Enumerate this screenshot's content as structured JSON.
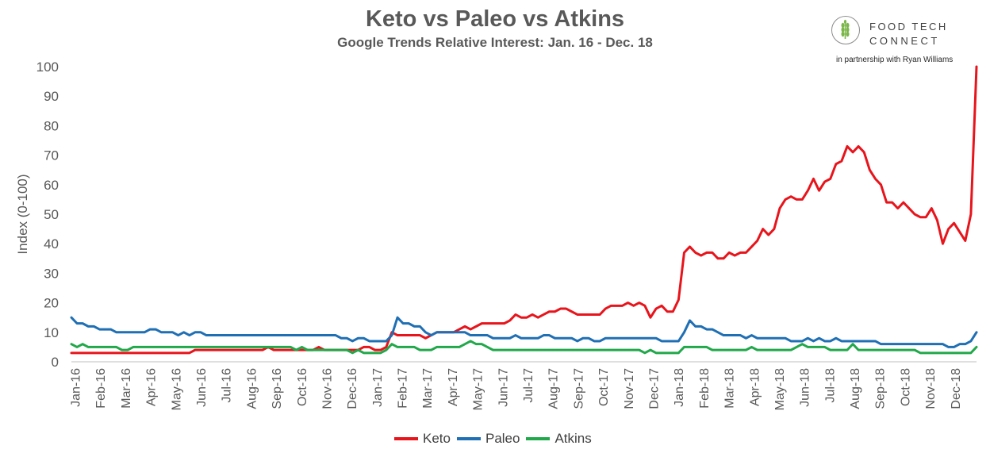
{
  "chart_data": {
    "type": "line",
    "title": "Keto vs Paleo vs Atkins",
    "subtitle": "Google Trends Relative Interest: Jan. 16 - Dec. 18",
    "ylabel": "Index (0-100)",
    "ylim": [
      0,
      100
    ],
    "yticks": [
      "0",
      "10",
      "20",
      "30",
      "40",
      "50",
      "60",
      "70",
      "80",
      "90",
      "100"
    ],
    "xticks": [
      "Jan-16",
      "Feb-16",
      "Mar-16",
      "Apr-16",
      "May-16",
      "Jun-16",
      "Jul-16",
      "Aug-16",
      "Sep-16",
      "Oct-16",
      "Nov-16",
      "Dec-16",
      "Jan-17",
      "Feb-17",
      "Mar-17",
      "Apr-17",
      "May-17",
      "Jun-17",
      "Jul-17",
      "Aug-17",
      "Sep-17",
      "Oct-17",
      "Nov-17",
      "Dec-17",
      "Jan-18",
      "Feb-18",
      "Mar-18",
      "Apr-18",
      "May-18",
      "Jun-18",
      "Jul-18",
      "Aug-18",
      "Sep-18",
      "Oct-18",
      "Nov-18",
      "Dec-18"
    ],
    "grid": false,
    "legend_position": "bottom",
    "series": [
      {
        "name": "Keto",
        "color": "#e8141b",
        "values": [
          3,
          3,
          3,
          3,
          3,
          3,
          3,
          3,
          3,
          3,
          3,
          3,
          3,
          3,
          3,
          3,
          3,
          3,
          3,
          3,
          3,
          3,
          4,
          4,
          4,
          4,
          4,
          4,
          4,
          4,
          4,
          4,
          4,
          4,
          4,
          5,
          4,
          4,
          4,
          4,
          4,
          4,
          4,
          4,
          5,
          4,
          4,
          4,
          4,
          4,
          4,
          4,
          5,
          5,
          4,
          4,
          5,
          10,
          9,
          9,
          9,
          9,
          9,
          8,
          9,
          10,
          10,
          10,
          10,
          11,
          12,
          11,
          12,
          13,
          13,
          13,
          13,
          13,
          14,
          16,
          15,
          15,
          16,
          15,
          16,
          17,
          17,
          18,
          18,
          17,
          16,
          16,
          16,
          16,
          16,
          18,
          19,
          19,
          19,
          20,
          19,
          20,
          19,
          15,
          18,
          19,
          17,
          17,
          21,
          37,
          39,
          37,
          36,
          37,
          37,
          35,
          35,
          37,
          36,
          37,
          37,
          39,
          41,
          45,
          43,
          45,
          52,
          55,
          56,
          55,
          55,
          58,
          62,
          58,
          61,
          62,
          67,
          68,
          73,
          71,
          73,
          71,
          65,
          62,
          60,
          54,
          54,
          52,
          54,
          52,
          50,
          49,
          49,
          52,
          48,
          40,
          45,
          47,
          44,
          41,
          50,
          100
        ]
      },
      {
        "name": "Paleo",
        "color": "#1f6fb4",
        "values": [
          15,
          13,
          13,
          12,
          12,
          11,
          11,
          11,
          10,
          10,
          10,
          10,
          10,
          10,
          11,
          11,
          10,
          10,
          10,
          9,
          10,
          9,
          10,
          10,
          9,
          9,
          9,
          9,
          9,
          9,
          9,
          9,
          9,
          9,
          9,
          9,
          9,
          9,
          9,
          9,
          9,
          9,
          9,
          9,
          9,
          9,
          9,
          9,
          8,
          8,
          7,
          8,
          8,
          7,
          7,
          7,
          7,
          9,
          15,
          13,
          13,
          12,
          12,
          10,
          9,
          10,
          10,
          10,
          10,
          10,
          10,
          9,
          9,
          9,
          9,
          8,
          8,
          8,
          8,
          9,
          8,
          8,
          8,
          8,
          9,
          9,
          8,
          8,
          8,
          8,
          7,
          8,
          8,
          7,
          7,
          8,
          8,
          8,
          8,
          8,
          8,
          8,
          8,
          8,
          8,
          7,
          7,
          7,
          7,
          10,
          14,
          12,
          12,
          11,
          11,
          10,
          9,
          9,
          9,
          9,
          8,
          9,
          8,
          8,
          8,
          8,
          8,
          8,
          7,
          7,
          7,
          8,
          7,
          8,
          7,
          7,
          8,
          7,
          7,
          7,
          7,
          7,
          7,
          7,
          6,
          6,
          6,
          6,
          6,
          6,
          6,
          6,
          6,
          6,
          6,
          6,
          5,
          5,
          6,
          6,
          7,
          10
        ]
      },
      {
        "name": "Atkins",
        "color": "#21a84a",
        "values": [
          6,
          5,
          6,
          5,
          5,
          5,
          5,
          5,
          5,
          4,
          4,
          5,
          5,
          5,
          5,
          5,
          5,
          5,
          5,
          5,
          5,
          5,
          5,
          5,
          5,
          5,
          5,
          5,
          5,
          5,
          5,
          5,
          5,
          5,
          5,
          5,
          5,
          5,
          5,
          5,
          4,
          5,
          4,
          4,
          4,
          4,
          4,
          4,
          4,
          4,
          3,
          4,
          3,
          3,
          3,
          3,
          4,
          6,
          5,
          5,
          5,
          5,
          4,
          4,
          4,
          5,
          5,
          5,
          5,
          5,
          6,
          7,
          6,
          6,
          5,
          4,
          4,
          4,
          4,
          4,
          4,
          4,
          4,
          4,
          4,
          4,
          4,
          4,
          4,
          4,
          4,
          4,
          4,
          4,
          4,
          4,
          4,
          4,
          4,
          4,
          4,
          4,
          3,
          4,
          3,
          3,
          3,
          3,
          3,
          5,
          5,
          5,
          5,
          5,
          4,
          4,
          4,
          4,
          4,
          4,
          4,
          5,
          4,
          4,
          4,
          4,
          4,
          4,
          4,
          5,
          6,
          5,
          5,
          5,
          5,
          4,
          4,
          4,
          4,
          6,
          4,
          4,
          4,
          4,
          4,
          4,
          4,
          4,
          4,
          4,
          4,
          3,
          3,
          3,
          3,
          3,
          3,
          3,
          3,
          3,
          3,
          5
        ]
      }
    ]
  },
  "logo": {
    "top_text": "FOOD TECH",
    "bottom_text": "CONNECT",
    "partnership": "in partnership with Ryan Williams",
    "icon": "wheat-icon"
  }
}
